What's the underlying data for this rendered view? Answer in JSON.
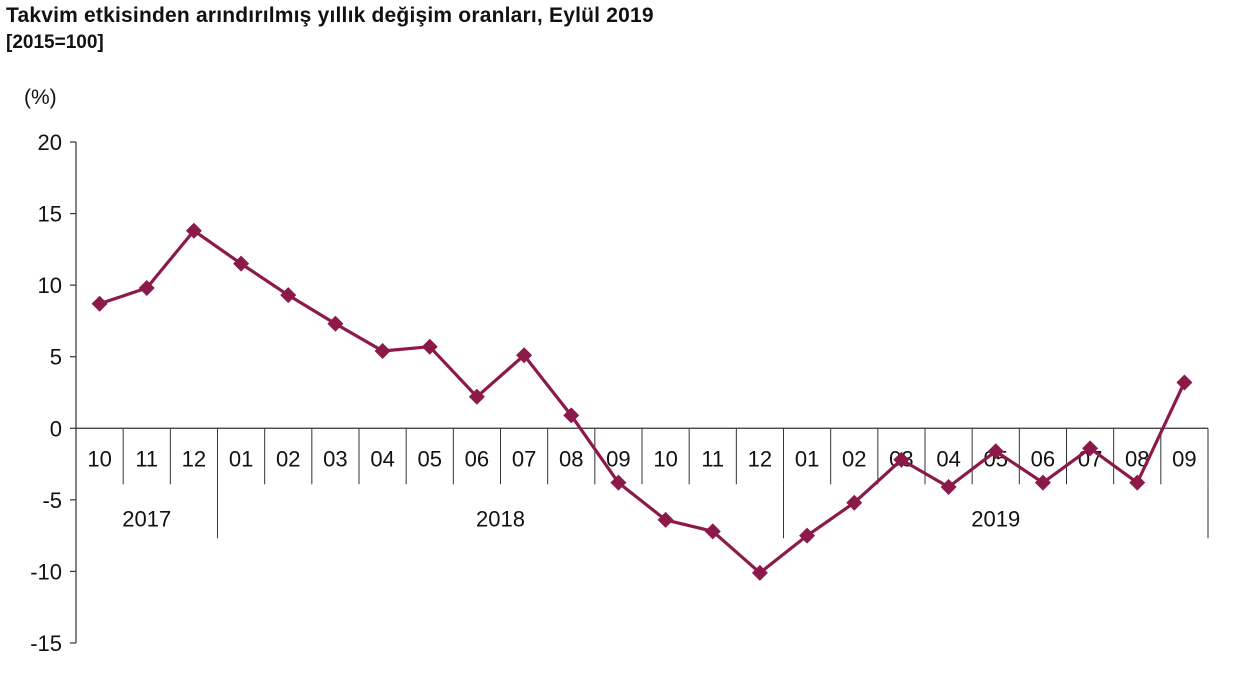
{
  "chart_data": {
    "type": "line",
    "title": "Takvim etkisinden arındırılmış yıllık değişim oranları, Eylül 2019",
    "subtitle": "[2015=100]",
    "ylabel": "(%)",
    "xlabel": "",
    "ylim": [
      -15,
      20
    ],
    "yticks": [
      20,
      15,
      10,
      5,
      0,
      -5,
      -10,
      -15
    ],
    "categories": [
      "10",
      "11",
      "12",
      "01",
      "02",
      "03",
      "04",
      "05",
      "06",
      "07",
      "08",
      "09",
      "10",
      "11",
      "12",
      "01",
      "02",
      "03",
      "04",
      "05",
      "06",
      "07",
      "08",
      "09"
    ],
    "year_groups": [
      {
        "label": "2017",
        "count": 3
      },
      {
        "label": "2018",
        "count": 12
      },
      {
        "label": "2019",
        "count": 9
      }
    ],
    "series": [
      {
        "values": [
          8.7,
          9.8,
          13.8,
          11.5,
          9.3,
          7.3,
          5.4,
          5.7,
          2.2,
          5.1,
          0.9,
          -3.8,
          -6.4,
          -7.2,
          -10.1,
          -7.5,
          -5.2,
          -2.2,
          -4.1,
          -1.6,
          -3.8,
          -1.4,
          -3.8,
          3.2
        ],
        "color": "#8b1a4a",
        "marker": "diamond"
      }
    ],
    "grid": false,
    "legend": "none"
  }
}
